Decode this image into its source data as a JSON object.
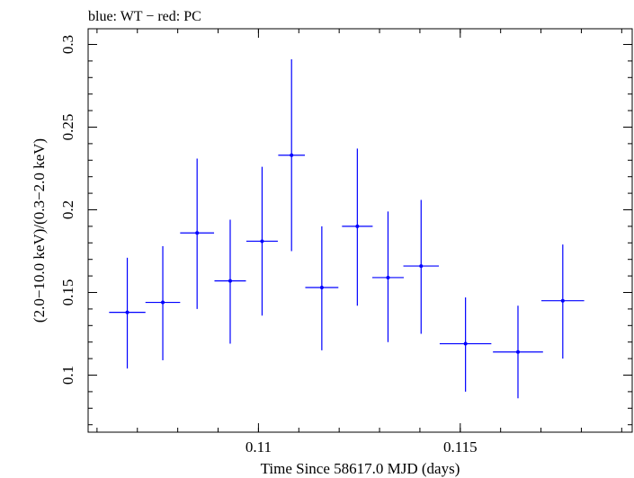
{
  "chart_data": {
    "type": "scatter",
    "title": "blue: WT − red: PC",
    "xlabel": "Time Since 58617.0 MJD (days)",
    "ylabel": "(2.0−10.0 keV)/(0.3−2.0 keV)",
    "xlim": [
      0.10578,
      0.11926
    ],
    "ylim": [
      0.0655,
      0.3095
    ],
    "x_ticks": [
      {
        "value": 0.11,
        "label": "0.11"
      },
      {
        "value": 0.115,
        "label": "0.115"
      }
    ],
    "y_ticks": [
      {
        "value": 0.1,
        "label": "0.1"
      },
      {
        "value": 0.15,
        "label": "0.15"
      },
      {
        "value": 0.2,
        "label": "0.2"
      },
      {
        "value": 0.25,
        "label": "0.25"
      },
      {
        "value": 0.3,
        "label": "0.3"
      }
    ],
    "grid": false,
    "series": [
      {
        "color": "#0000ff",
        "points": [
          {
            "x": 0.10675,
            "y": 0.138,
            "xerr": 0.00045,
            "ylo": 0.104,
            "yhi": 0.171
          },
          {
            "x": 0.10763,
            "y": 0.144,
            "xerr": 0.00043,
            "ylo": 0.109,
            "yhi": 0.178
          },
          {
            "x": 0.10848,
            "y": 0.186,
            "xerr": 0.00042,
            "ylo": 0.14,
            "yhi": 0.231
          },
          {
            "x": 0.1093,
            "y": 0.157,
            "xerr": 0.00039,
            "ylo": 0.119,
            "yhi": 0.194
          },
          {
            "x": 0.11009,
            "y": 0.181,
            "xerr": 0.00039,
            "ylo": 0.136,
            "yhi": 0.226
          },
          {
            "x": 0.11082,
            "y": 0.233,
            "xerr": 0.00033,
            "ylo": 0.175,
            "yhi": 0.291
          },
          {
            "x": 0.11157,
            "y": 0.153,
            "xerr": 0.00041,
            "ylo": 0.115,
            "yhi": 0.19
          },
          {
            "x": 0.11245,
            "y": 0.19,
            "xerr": 0.00038,
            "ylo": 0.142,
            "yhi": 0.237
          },
          {
            "x": 0.11321,
            "y": 0.159,
            "xerr": 0.00039,
            "ylo": 0.12,
            "yhi": 0.199
          },
          {
            "x": 0.11403,
            "y": 0.166,
            "xerr": 0.00044,
            "ylo": 0.125,
            "yhi": 0.206
          },
          {
            "x": 0.11513,
            "y": 0.119,
            "xerr": 0.00064,
            "ylo": 0.09,
            "yhi": 0.147
          },
          {
            "x": 0.11643,
            "y": 0.114,
            "xerr": 0.00062,
            "ylo": 0.086,
            "yhi": 0.142
          },
          {
            "x": 0.11754,
            "y": 0.145,
            "xerr": 0.00053,
            "ylo": 0.11,
            "yhi": 0.179
          }
        ]
      }
    ]
  }
}
